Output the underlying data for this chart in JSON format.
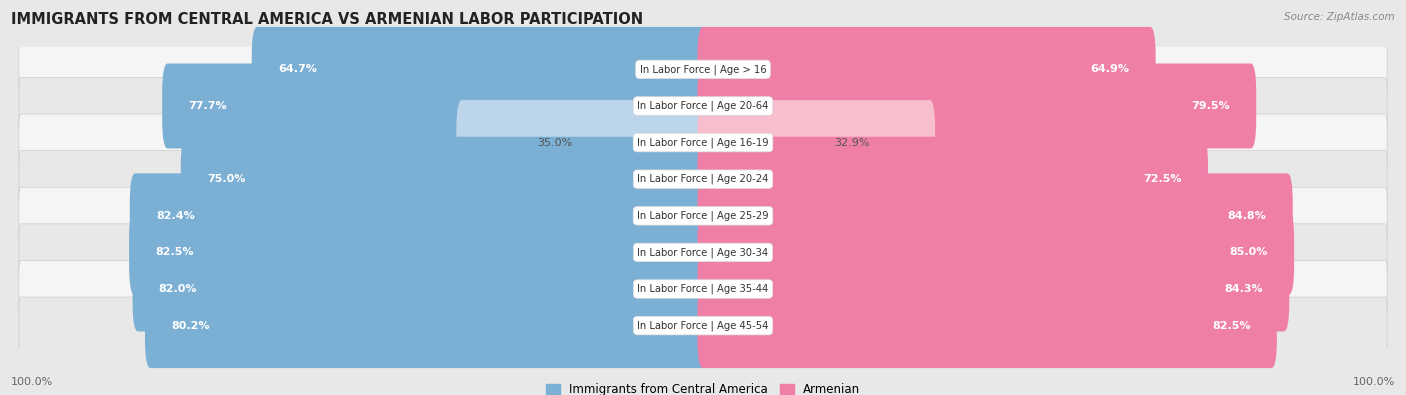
{
  "title": "IMMIGRANTS FROM CENTRAL AMERICA VS ARMENIAN LABOR PARTICIPATION",
  "source": "Source: ZipAtlas.com",
  "categories": [
    "In Labor Force | Age > 16",
    "In Labor Force | Age 20-64",
    "In Labor Force | Age 16-19",
    "In Labor Force | Age 20-24",
    "In Labor Force | Age 25-29",
    "In Labor Force | Age 30-34",
    "In Labor Force | Age 35-44",
    "In Labor Force | Age 45-54"
  ],
  "central_america_values": [
    64.7,
    77.7,
    35.0,
    75.0,
    82.4,
    82.5,
    82.0,
    80.2
  ],
  "armenian_values": [
    64.9,
    79.5,
    32.9,
    72.5,
    84.8,
    85.0,
    84.3,
    82.5
  ],
  "central_america_color": "#7BAFD4",
  "armenian_color": "#F07FA8",
  "central_america_light_color": "#BDD5EA",
  "armenian_light_color": "#F7BECE",
  "background_color": "#e8e8e8",
  "row_bg_even": "#f5f5f5",
  "row_bg_odd": "#e8e8e8",
  "axis_label_left": "100.0%",
  "axis_label_right": "100.0%",
  "legend_label_ca": "Immigrants from Central America",
  "legend_label_arm": "Armenian"
}
